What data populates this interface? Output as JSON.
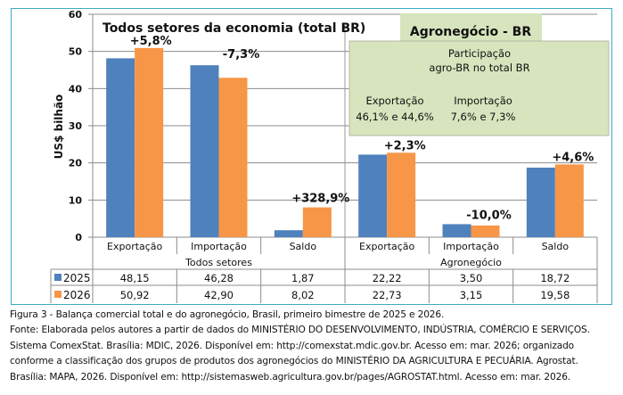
{
  "chart_data": {
    "type": "bar",
    "title": "Todos setores da economia (total BR)",
    "ylabel": "US$ bilhão",
    "xlabel": "",
    "ylim": [
      0,
      60
    ],
    "yticks": [
      0,
      10,
      20,
      30,
      40,
      50,
      60
    ],
    "grid": true,
    "legend": "table-left",
    "categories": [
      "Exportação",
      "Importação",
      "Saldo",
      "Exportação",
      "Importação",
      "Saldo"
    ],
    "groups": [
      {
        "label": "Todos setores",
        "span": [
          0,
          2
        ]
      },
      {
        "label": "Agronegócio",
        "span": [
          3,
          5
        ]
      }
    ],
    "series": [
      {
        "name": "2025",
        "color": "#4f81bd",
        "values": [
          48.15,
          46.28,
          1.87,
          22.22,
          3.5,
          18.72
        ],
        "labels": [
          "48,15",
          "46,28",
          "1,87",
          "22,22",
          "3,50",
          "18,72"
        ]
      },
      {
        "name": "2026",
        "color": "#f79646",
        "values": [
          50.92,
          42.9,
          8.02,
          22.73,
          3.15,
          19.58
        ],
        "labels": [
          "50,92",
          "42,90",
          "8,02",
          "22,73",
          "3,15",
          "19,58"
        ]
      }
    ],
    "annotations": [
      "+5,8%",
      "-7,3%",
      "+328,9%",
      "+2,3%",
      "-10,0%",
      "+4,6%"
    ],
    "agro_box": {
      "title": "Agronegócio - BR",
      "subtitle_line1": "Participação",
      "subtitle_line2": "agro-BR no total BR",
      "export_label": "Exportação",
      "export_value": "46,1% e 44,6%",
      "import_label": "Importação",
      "import_value": "7,6% e 7,3%",
      "fill": "#d7e4bd"
    }
  },
  "caption": [
    "Figura 3 - Balança comercial total e do agronegócio, Brasil, primeiro bimestre de 2025 e 2026.",
    "Fonte: Elaborada pelos autores a partir de dados do MINISTÉRIO DO DESENVOLVIMENTO, INDÚSTRIA, COMÉRCIO E SERVIÇOS.",
    "Sistema ComexStat. Brasília: MDIC, 2026. Disponível em: http://comexstat.mdic.gov.br. Acesso em: mar. 2026; organizado",
    "conforme a classificação dos grupos de produtos dos agronegócios do MINISTÉRIO DA AGRICULTURA E PECUÁRIA. Agrostat.",
    "Brasília: MAPA, 2026. Disponível em: http://sistemasweb.agricultura.gov.br/pages/AGROSTAT.html. Acesso em: mar. 2026."
  ]
}
